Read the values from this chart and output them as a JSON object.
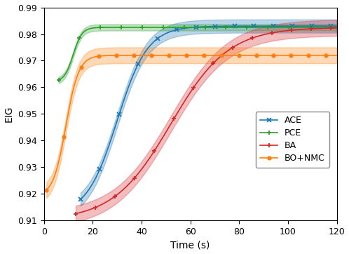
{
  "xlabel": "Time (s)",
  "ylabel": "EIG",
  "xlim": [
    0,
    120
  ],
  "ylim": [
    0.91,
    0.99
  ],
  "yticks": [
    0.91,
    0.92,
    0.93,
    0.94,
    0.95,
    0.96,
    0.97,
    0.98,
    0.99
  ],
  "xticks": [
    0,
    20,
    40,
    60,
    80,
    100,
    120
  ],
  "ACE_color": "#1f77b4",
  "PCE_color": "#2ca02c",
  "BA_color": "#d62728",
  "BO_color": "#ff7f0e",
  "figsize": [
    4.98,
    3.62
  ],
  "dpi": 100
}
